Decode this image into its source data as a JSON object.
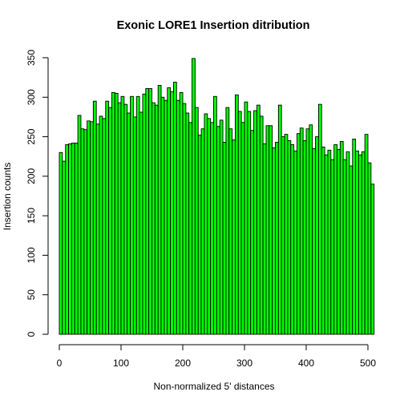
{
  "chart_data": {
    "type": "bar",
    "title": "Exonic LORE1 Insertion ditribution",
    "xlabel": "Non-normalized 5' distances",
    "ylabel": "Insertion counts",
    "bar_color": "#00ff00",
    "border_color": "#000000",
    "xlim": [
      0,
      500
    ],
    "ylim": [
      0,
      350
    ],
    "xticks": [
      0,
      100,
      200,
      300,
      400,
      500
    ],
    "yticks": [
      0,
      50,
      100,
      150,
      200,
      250,
      300,
      350
    ],
    "bin_width": 5,
    "bins_start": 0,
    "values": [
      230,
      219,
      240,
      241,
      242,
      242,
      277,
      260,
      259,
      270,
      269,
      295,
      266,
      276,
      273,
      295,
      287,
      306,
      305,
      293,
      301,
      291,
      280,
      301,
      275,
      301,
      281,
      304,
      311,
      311,
      293,
      290,
      315,
      300,
      296,
      312,
      307,
      319,
      296,
      306,
      292,
      280,
      268,
      349,
      287,
      252,
      260,
      279,
      273,
      268,
      301,
      263,
      271,
      243,
      287,
      260,
      246,
      303,
      282,
      268,
      294,
      282,
      258,
      283,
      290,
      276,
      241,
      264,
      264,
      236,
      243,
      290,
      250,
      253,
      245,
      240,
      232,
      254,
      261,
      245,
      260,
      265,
      235,
      250,
      291,
      237,
      227,
      233,
      221,
      240,
      234,
      244,
      221,
      231,
      213,
      247,
      232,
      227,
      231,
      253,
      217,
      190
    ]
  }
}
